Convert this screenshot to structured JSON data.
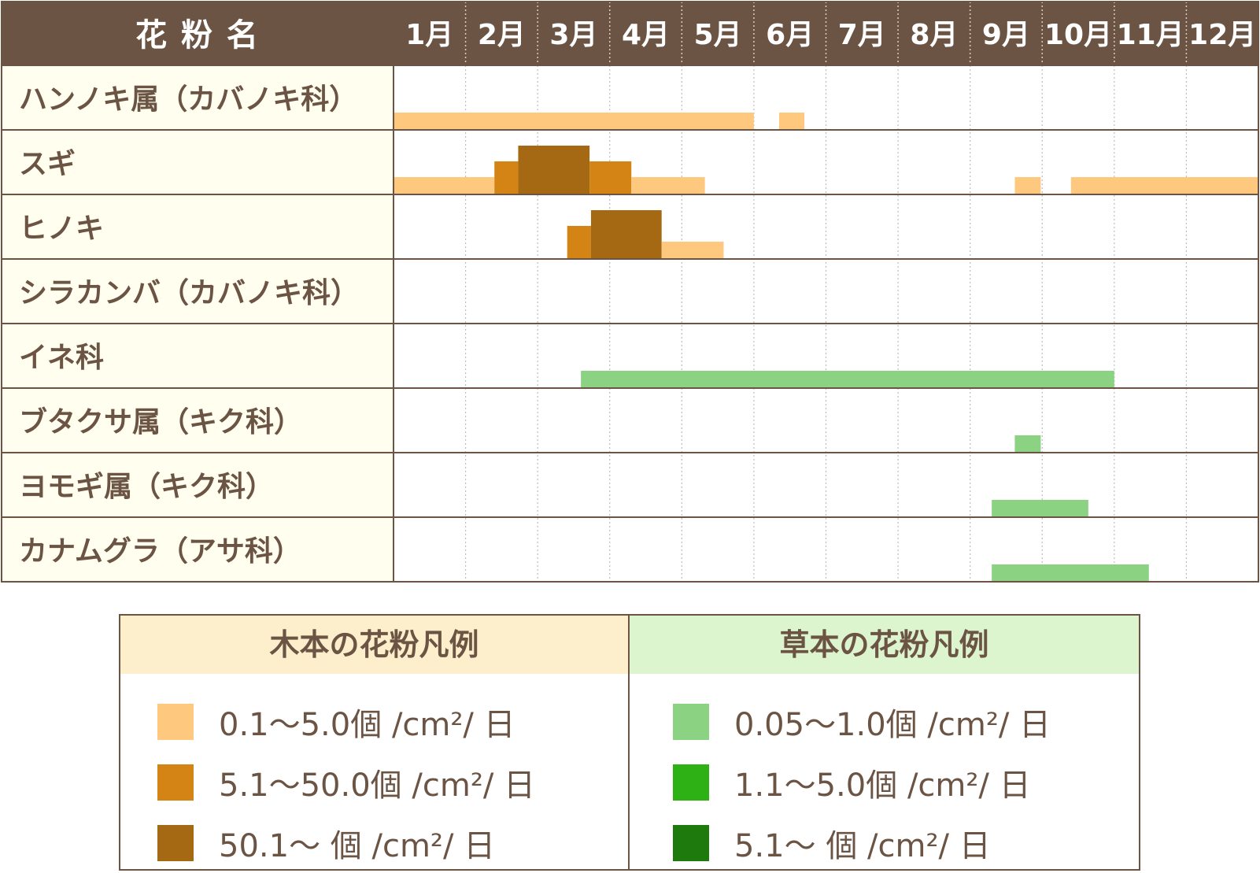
{
  "colors": {
    "header_bg": "#6b5444",
    "row_label_bg": "#fffeef",
    "border": "#6b5444",
    "wood_low": "#fec97f",
    "wood_mid": "#d38414",
    "wood_high": "#a46912",
    "grass_low": "#8bd283",
    "grass_mid": "#2eb114",
    "grass_high": "#1e7a0d"
  },
  "chart_data": {
    "type": "bar",
    "title": "",
    "header": {
      "name_label": "花 粉 名",
      "months": [
        "1月",
        "2月",
        "3月",
        "4月",
        "5月",
        "6月",
        "7月",
        "8月",
        "9月",
        "10月",
        "11月",
        "12月"
      ]
    },
    "x_unit": "month",
    "xlim": [
      1,
      13
    ],
    "rows": [
      {
        "name": "ハンノキ属（カバノキ科）",
        "type": "wood",
        "segments": [
          {
            "start": 1.0,
            "end": 6.0,
            "level": "low"
          },
          {
            "start": 6.35,
            "end": 6.7,
            "level": "low"
          }
        ]
      },
      {
        "name": "スギ",
        "type": "wood",
        "segments": [
          {
            "start": 1.0,
            "end": 2.4,
            "level": "low"
          },
          {
            "start": 2.4,
            "end": 2.73,
            "level": "mid"
          },
          {
            "start": 2.73,
            "end": 3.72,
            "level": "high"
          },
          {
            "start": 3.72,
            "end": 4.3,
            "level": "mid"
          },
          {
            "start": 4.3,
            "end": 5.32,
            "level": "low"
          },
          {
            "start": 9.62,
            "end": 9.98,
            "level": "low"
          },
          {
            "start": 10.4,
            "end": 13.0,
            "level": "low"
          }
        ]
      },
      {
        "name": "ヒノキ",
        "type": "wood",
        "segments": [
          {
            "start": 3.41,
            "end": 3.74,
            "level": "mid"
          },
          {
            "start": 3.74,
            "end": 4.72,
            "level": "high"
          },
          {
            "start": 4.72,
            "end": 5.58,
            "level": "low"
          }
        ]
      },
      {
        "name": "シラカンバ（カバノキ科）",
        "type": "wood",
        "segments": []
      },
      {
        "name": "イネ科",
        "type": "grass",
        "segments": [
          {
            "start": 3.6,
            "end": 11.0,
            "level": "low"
          }
        ]
      },
      {
        "name": "ブタクサ属（キク科）",
        "type": "grass",
        "segments": [
          {
            "start": 9.62,
            "end": 9.98,
            "level": "low"
          }
        ]
      },
      {
        "name": "ヨモギ属（キク科）",
        "type": "grass",
        "segments": [
          {
            "start": 9.3,
            "end": 10.64,
            "level": "low"
          }
        ]
      },
      {
        "name": "カナムグラ（アサ科）",
        "type": "grass",
        "segments": [
          {
            "start": 9.3,
            "end": 11.48,
            "level": "low"
          }
        ]
      }
    ]
  },
  "legend": {
    "wood": {
      "title": "木本の花粉凡例",
      "items": [
        {
          "label": "0.1〜5.0個 /cm²/ 日",
          "color": "#fec97f"
        },
        {
          "label": "5.1〜50.0個 /cm²/ 日",
          "color": "#d38414"
        },
        {
          "label": "50.1〜 個 /cm²/ 日",
          "color": "#a46912"
        }
      ]
    },
    "grass": {
      "title": "草本の花粉凡例",
      "items": [
        {
          "label": "0.05〜1.0個 /cm²/ 日",
          "color": "#8bd283"
        },
        {
          "label": "1.1〜5.0個 /cm²/ 日",
          "color": "#2eb114"
        },
        {
          "label": "5.1〜 個 /cm²/ 日",
          "color": "#1e7a0d"
        }
      ]
    }
  }
}
